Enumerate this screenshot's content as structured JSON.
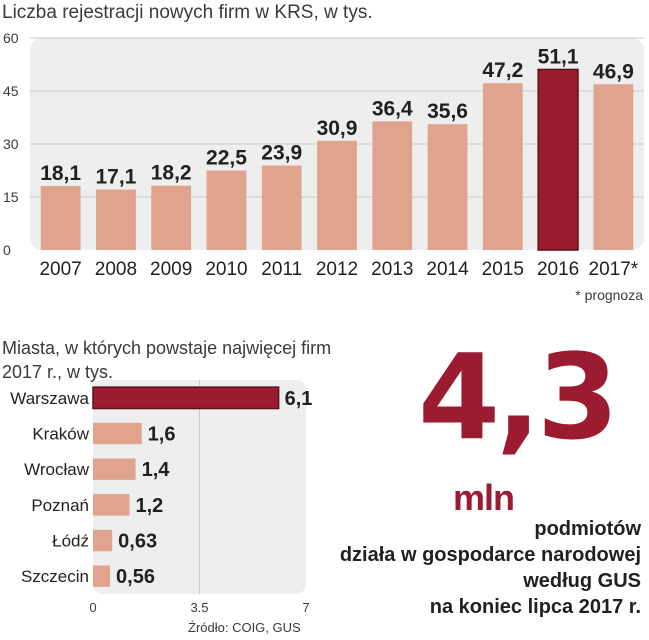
{
  "top_chart": {
    "title": "Liczba rejestracji nowych firm w KRS, w tys.",
    "note": "* prognoza",
    "chart_data": {
      "type": "bar",
      "categories": [
        "2007",
        "2008",
        "2009",
        "2010",
        "2011",
        "2012",
        "2013",
        "2014",
        "2015",
        "2016",
        "2017*"
      ],
      "values": [
        18.1,
        17.1,
        18.2,
        22.5,
        23.9,
        30.9,
        36.4,
        35.6,
        47.2,
        51.1,
        46.9
      ],
      "value_labels": [
        "18,1",
        "17,1",
        "18,2",
        "22,5",
        "23,9",
        "30,9",
        "36,4",
        "35,6",
        "47,2",
        "51,1",
        "46,9"
      ],
      "highlight_index": 9,
      "ylim": [
        0,
        60
      ],
      "yticks": [
        0,
        15,
        30,
        45,
        60
      ],
      "grid": true,
      "colors": {
        "bar": "#dfa38e",
        "highlight": "#9b1b30",
        "panel": "#eeeeee"
      }
    }
  },
  "bottom_chart": {
    "title_line1": "Miasta, w których powstaje najwięcej firm",
    "title_line2": "2017 r., w tys.",
    "source": "Źródło: COIG, GUS",
    "chart_data": {
      "type": "bar",
      "orientation": "horizontal",
      "categories": [
        "Warszawa",
        "Kraków",
        "Wrocław",
        "Poznań",
        "Łódź",
        "Szczecin"
      ],
      "values": [
        6.1,
        1.6,
        1.4,
        1.2,
        0.63,
        0.56
      ],
      "value_labels": [
        "6,1",
        "1,6",
        "1,4",
        "1,2",
        "0,63",
        "0,56"
      ],
      "highlight_index": 0,
      "xlim": [
        0,
        7
      ],
      "xticks": [
        0,
        3.5,
        7
      ],
      "xtick_labels": [
        "0",
        "3.5",
        "7"
      ],
      "grid": true,
      "colors": {
        "bar": "#dfa38e",
        "highlight": "#9b1b30",
        "panel": "#eeeeee"
      }
    }
  },
  "highlight": {
    "number": "4,3",
    "unit": "mln",
    "line1": "podmiotów",
    "line2": "działa w gospodarce narodowej",
    "line3": "według GUS",
    "line4": "na koniec lipca 2017 r.",
    "color": "#9b1b30"
  }
}
